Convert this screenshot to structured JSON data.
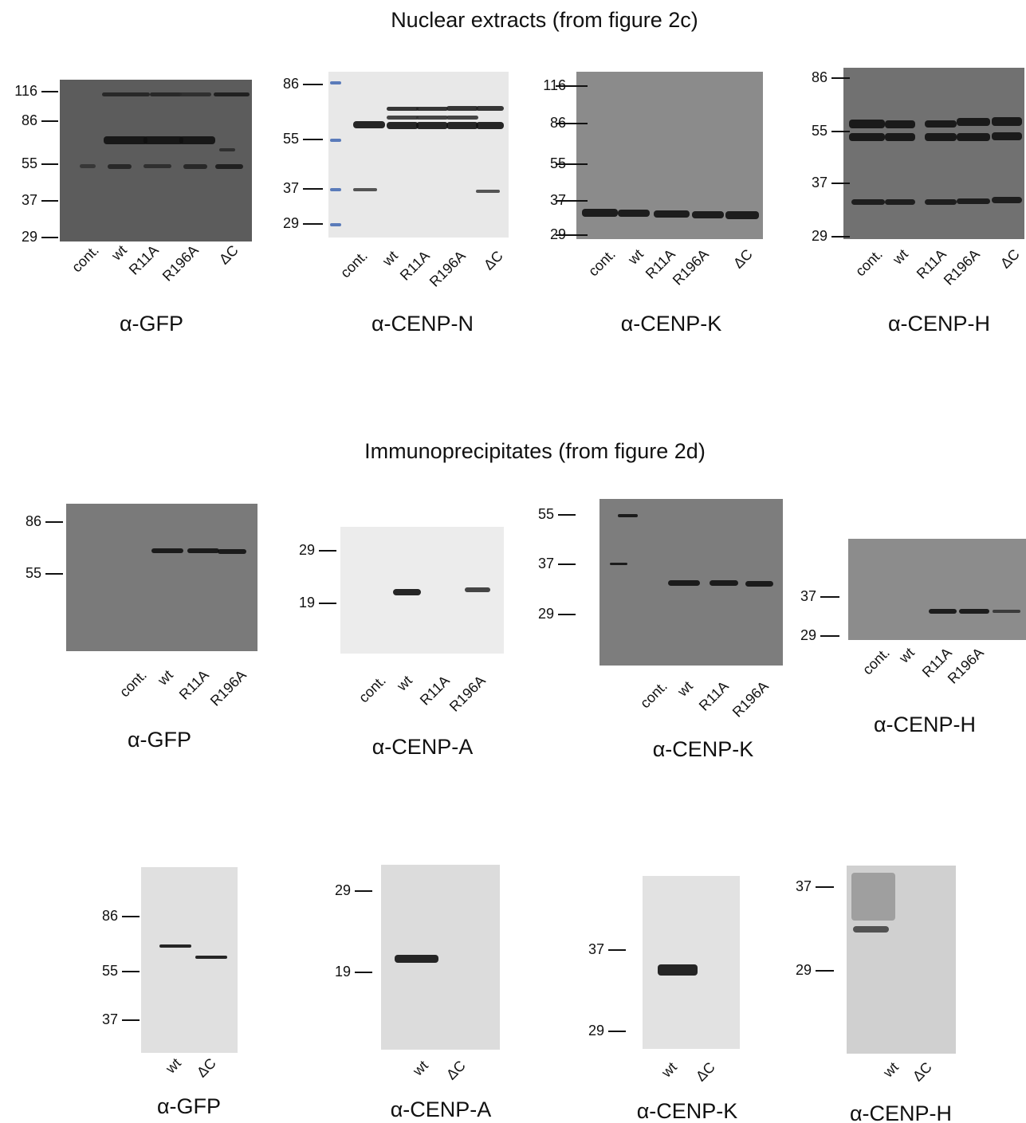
{
  "sections": [
    {
      "title": "Nuclear extracts (from figure 2c)",
      "panels": [
        {
          "antibody": "α-GFP",
          "markers": [
            "116",
            "86",
            "55",
            "37",
            "29"
          ],
          "lanes": [
            "cont.",
            "wt",
            "R11A",
            "R196A",
            "ΔC"
          ]
        },
        {
          "antibody": "α-CENP-N",
          "markers": [
            "86",
            "55",
            "37",
            "29"
          ],
          "lanes": [
            "cont.",
            "wt",
            "R11A",
            "R196A",
            "ΔC"
          ]
        },
        {
          "antibody": "α-CENP-K",
          "markers": [
            "116",
            "86",
            "55",
            "37",
            "29"
          ],
          "lanes": [
            "cont.",
            "wt",
            "R11A",
            "R196A",
            "ΔC"
          ]
        },
        {
          "antibody": "α-CENP-H",
          "markers": [
            "86",
            "55",
            "37",
            "29"
          ],
          "lanes": [
            "cont.",
            "wt",
            "R11A",
            "R196A",
            "ΔC"
          ]
        }
      ]
    },
    {
      "title": "Immunoprecipitates (from figure 2d)",
      "panels": [
        {
          "antibody": "α-GFP",
          "markers": [
            "86",
            "55"
          ],
          "lanes": [
            "cont.",
            "wt",
            "R11A",
            "R196A"
          ]
        },
        {
          "antibody": "α-CENP-A",
          "markers": [
            "29",
            "19"
          ],
          "lanes": [
            "cont.",
            "wt",
            "R11A",
            "R196A"
          ]
        },
        {
          "antibody": "α-CENP-K",
          "markers": [
            "55",
            "37",
            "29"
          ],
          "lanes": [
            "cont.",
            "wt",
            "R11A",
            "R196A"
          ]
        },
        {
          "antibody": "α-CENP-H",
          "markers": [
            "37",
            "29"
          ],
          "lanes": [
            "cont.",
            "wt",
            "R11A",
            "R196A"
          ]
        }
      ]
    },
    {
      "panels": [
        {
          "antibody": "α-GFP",
          "markers": [
            "86",
            "55",
            "37"
          ],
          "lanes": [
            "wt",
            "ΔC"
          ]
        },
        {
          "antibody": "α-CENP-A",
          "markers": [
            "29",
            "19"
          ],
          "lanes": [
            "wt",
            "ΔC"
          ]
        },
        {
          "antibody": "α-CENP-K",
          "markers": [
            "37",
            "29"
          ],
          "lanes": [
            "wt",
            "ΔC"
          ]
        },
        {
          "antibody": "α-CENP-H",
          "markers": [
            "37",
            "29"
          ],
          "lanes": [
            "wt",
            "ΔC"
          ]
        }
      ]
    }
  ]
}
